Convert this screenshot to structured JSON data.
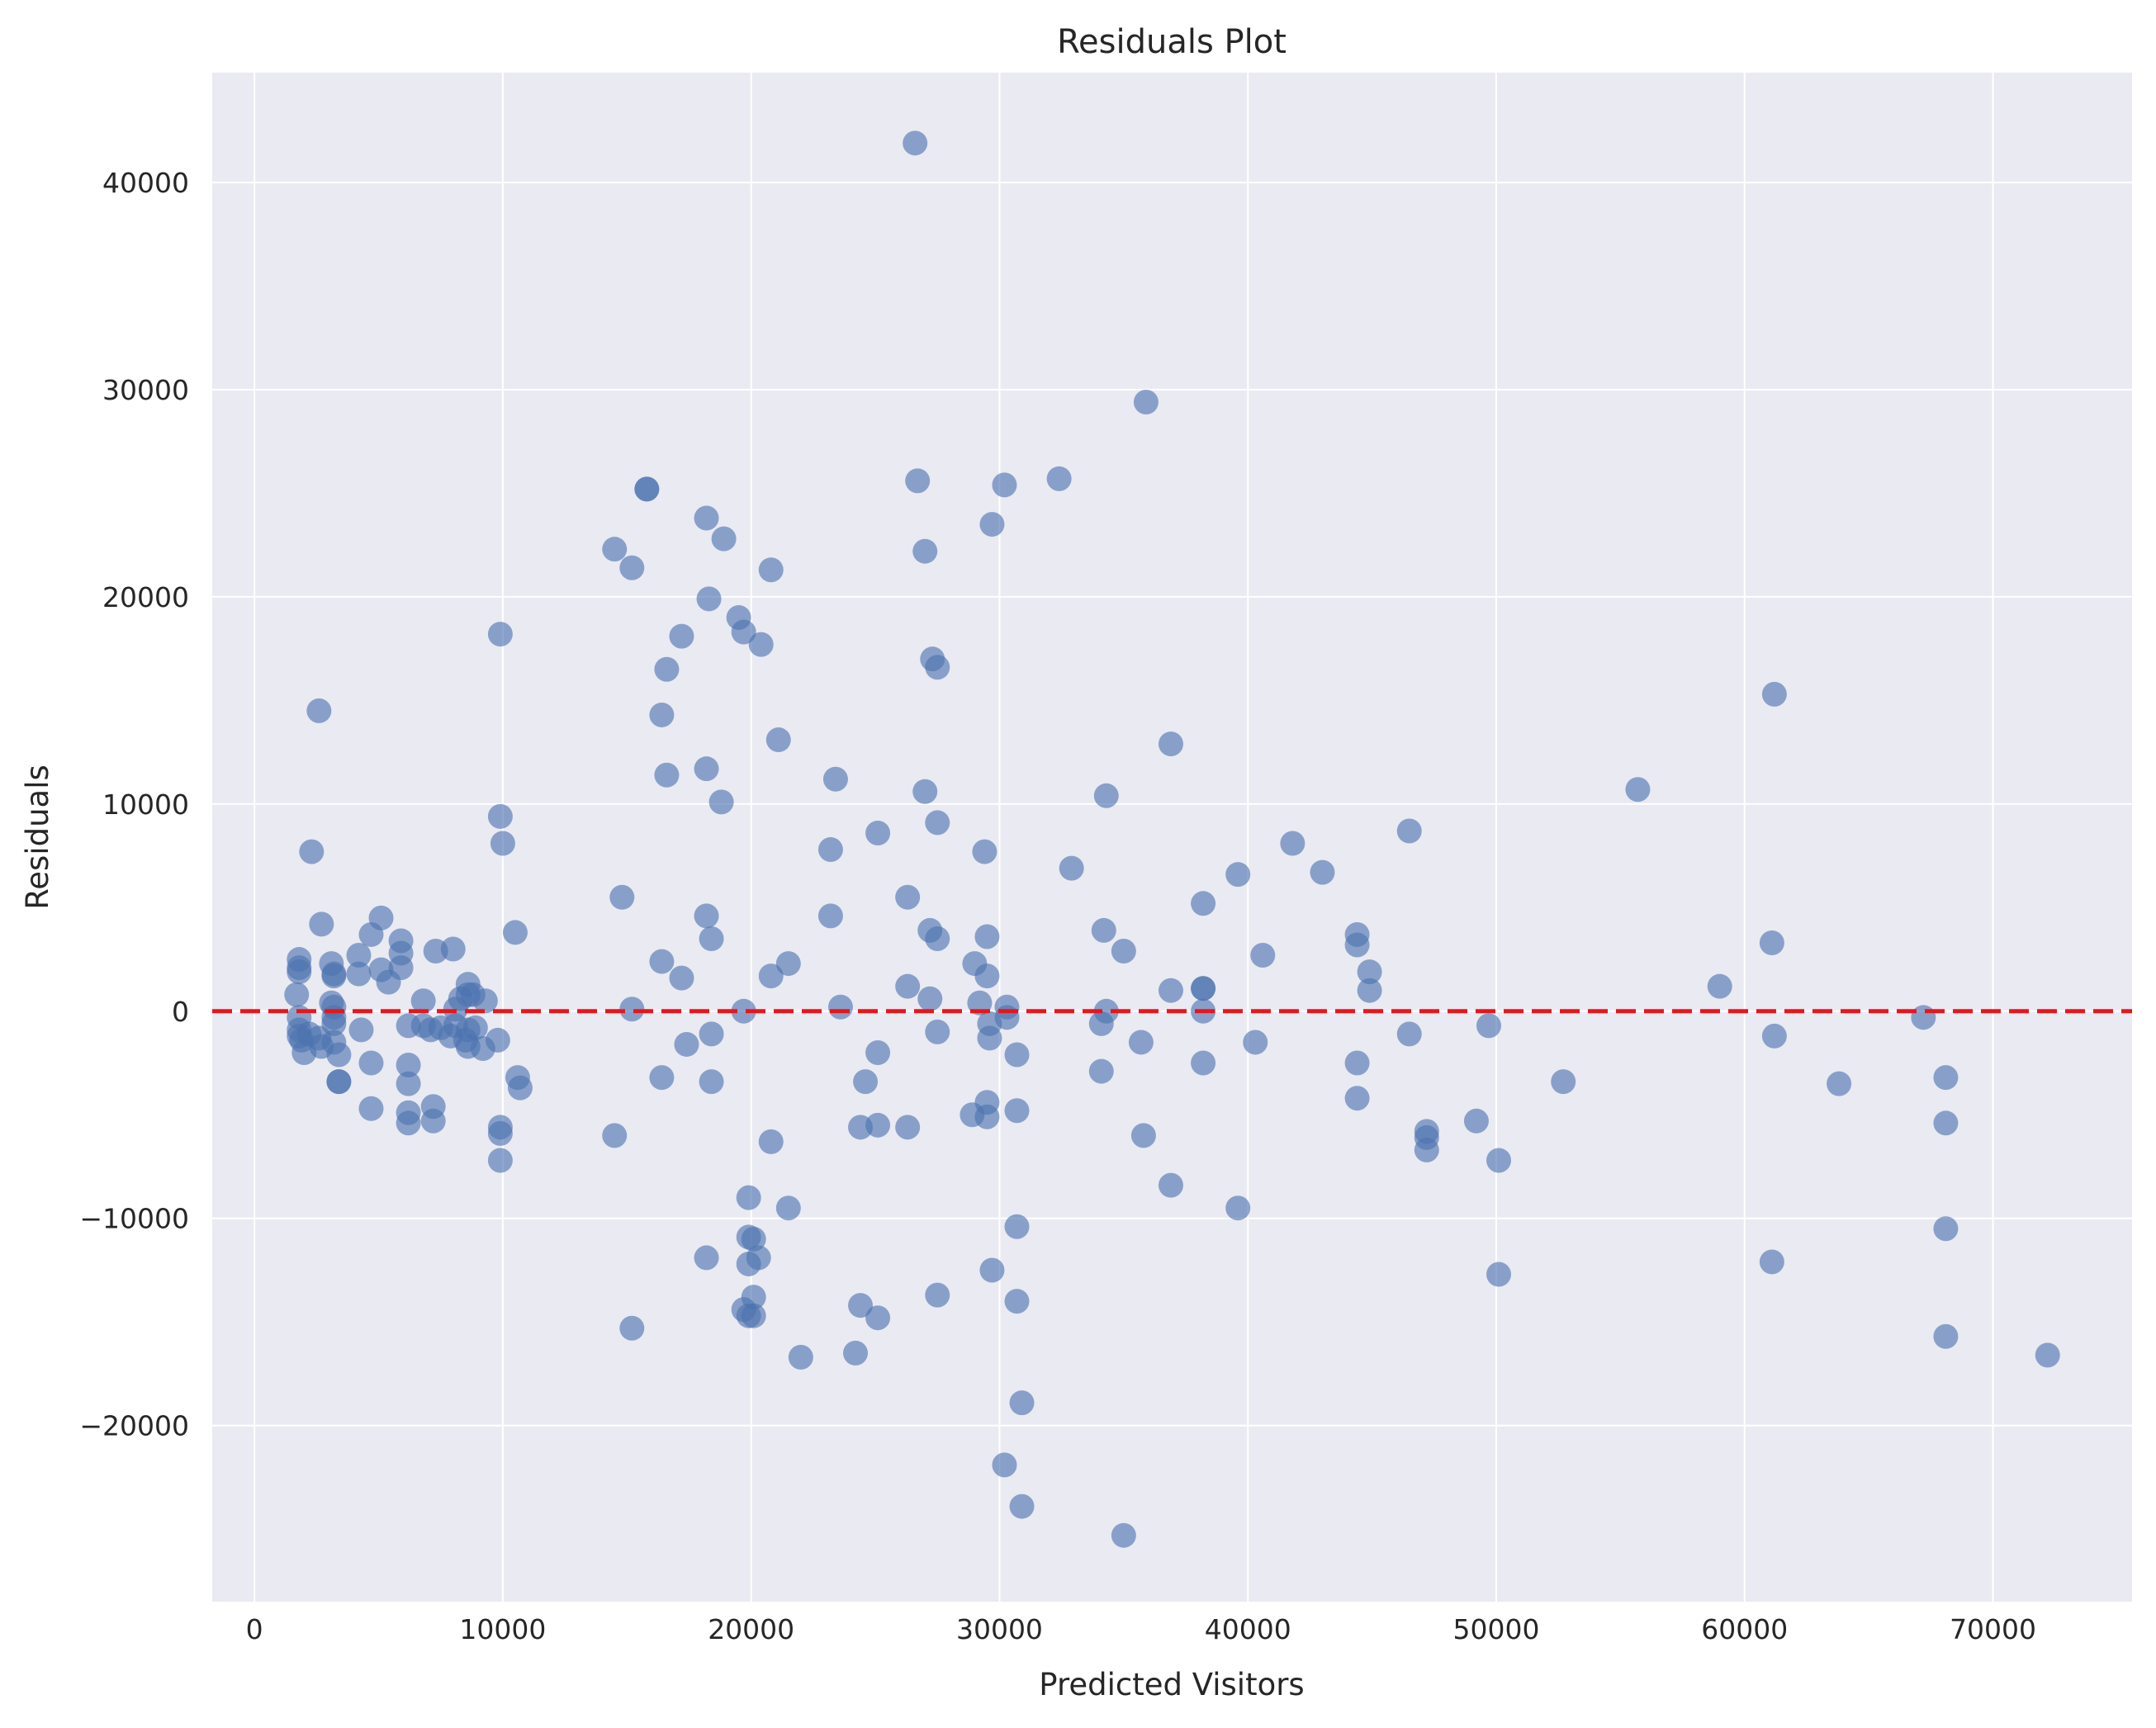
{
  "chart_data": {
    "type": "scatter",
    "title": "Residuals Plot",
    "xlabel": "Predicted Visitors",
    "ylabel": "Residuals",
    "xlim": [
      -1700,
      75600
    ],
    "ylim": [
      -28500,
      45300
    ],
    "xticks": [
      0,
      10000,
      20000,
      30000,
      40000,
      50000,
      60000,
      70000
    ],
    "yticks": [
      -20000,
      -10000,
      0,
      10000,
      20000,
      30000,
      40000
    ],
    "xtick_labels": [
      "0",
      "10000",
      "20000",
      "30000",
      "40000",
      "50000",
      "60000",
      "70000"
    ],
    "ytick_labels": [
      "−20000",
      "−10000",
      "0",
      "10000",
      "20000",
      "30000",
      "40000"
    ],
    "grid": true,
    "reference_line": {
      "y": 0,
      "style": "dashed",
      "color": "#e8161b"
    },
    "colors": {
      "background": "#eaeaf2",
      "grid": "#ffffff",
      "points": "#4c72b0",
      "text": "#262626"
    },
    "points": [
      [
        26600,
        41900
      ],
      [
        35900,
        29400
      ],
      [
        15800,
        25200
      ],
      [
        15800,
        25200
      ],
      [
        26700,
        25600
      ],
      [
        30200,
        25400
      ],
      [
        32400,
        25700
      ],
      [
        18200,
        23800
      ],
      [
        18900,
        22800
      ],
      [
        29700,
        23500
      ],
      [
        14500,
        22300
      ],
      [
        15200,
        21400
      ],
      [
        27000,
        22200
      ],
      [
        20800,
        21300
      ],
      [
        18300,
        19900
      ],
      [
        19500,
        19000
      ],
      [
        19700,
        18300
      ],
      [
        20400,
        17700
      ],
      [
        17200,
        18100
      ],
      [
        9900,
        18200
      ],
      [
        16600,
        16500
      ],
      [
        27300,
        17000
      ],
      [
        27500,
        16600
      ],
      [
        2600,
        14500
      ],
      [
        16400,
        14300
      ],
      [
        21100,
        13100
      ],
      [
        36900,
        12900
      ],
      [
        16600,
        11400
      ],
      [
        18200,
        11700
      ],
      [
        23400,
        11200
      ],
      [
        27000,
        10600
      ],
      [
        34300,
        10400
      ],
      [
        55700,
        10700
      ],
      [
        61200,
        15300
      ],
      [
        18800,
        10100
      ],
      [
        9900,
        9400
      ],
      [
        27500,
        9100
      ],
      [
        10000,
        8100
      ],
      [
        25100,
        8600
      ],
      [
        2300,
        7700
      ],
      [
        23200,
        7800
      ],
      [
        29400,
        7700
      ],
      [
        41800,
        8100
      ],
      [
        46500,
        8700
      ],
      [
        32900,
        6900
      ],
      [
        39600,
        6600
      ],
      [
        43000,
        6700
      ],
      [
        14800,
        5500
      ],
      [
        26300,
        5500
      ],
      [
        38200,
        5200
      ],
      [
        2700,
        4200
      ],
      [
        5100,
        4500
      ],
      [
        23200,
        4600
      ],
      [
        18200,
        4600
      ],
      [
        27200,
        3900
      ],
      [
        34200,
        3900
      ],
      [
        4700,
        3700
      ],
      [
        5900,
        3400
      ],
      [
        7300,
        2900
      ],
      [
        8000,
        3000
      ],
      [
        10500,
        3800
      ],
      [
        18400,
        3500
      ],
      [
        27500,
        3500
      ],
      [
        29500,
        3600
      ],
      [
        44400,
        3700
      ],
      [
        44400,
        3200
      ],
      [
        61100,
        3300
      ],
      [
        1800,
        2500
      ],
      [
        3100,
        2300
      ],
      [
        4200,
        2700
      ],
      [
        5900,
        2800
      ],
      [
        16400,
        2400
      ],
      [
        21500,
        2300
      ],
      [
        35000,
        2900
      ],
      [
        40600,
        2700
      ],
      [
        1800,
        2100
      ],
      [
        1800,
        1900
      ],
      [
        3200,
        1800
      ],
      [
        3200,
        1700
      ],
      [
        4200,
        1800
      ],
      [
        5100,
        2000
      ],
      [
        5900,
        2100
      ],
      [
        5400,
        1400
      ],
      [
        8600,
        1300
      ],
      [
        17200,
        1600
      ],
      [
        20800,
        1700
      ],
      [
        29000,
        2300
      ],
      [
        29500,
        1700
      ],
      [
        44900,
        1900
      ],
      [
        26300,
        1200
      ],
      [
        38200,
        1100
      ],
      [
        38200,
        1100
      ],
      [
        59000,
        1200
      ],
      [
        1700,
        800
      ],
      [
        36900,
        1000
      ],
      [
        44900,
        1000
      ],
      [
        6800,
        500
      ],
      [
        8300,
        600
      ],
      [
        8600,
        800
      ],
      [
        8800,
        800
      ],
      [
        9300,
        500
      ],
      [
        3100,
        400
      ],
      [
        3200,
        200
      ],
      [
        15200,
        100
      ],
      [
        23600,
        200
      ],
      [
        27200,
        600
      ],
      [
        29200,
        400
      ],
      [
        30300,
        200
      ],
      [
        34300,
        0
      ],
      [
        38200,
        0
      ],
      [
        8100,
        100
      ],
      [
        1800,
        -300
      ],
      [
        3200,
        -300
      ],
      [
        19700,
        0
      ],
      [
        3200,
        -600
      ],
      [
        6200,
        -700
      ],
      [
        6800,
        -700
      ],
      [
        7500,
        -800
      ],
      [
        8100,
        -700
      ],
      [
        8600,
        -900
      ],
      [
        8900,
        -800
      ],
      [
        29600,
        -600
      ],
      [
        30300,
        -300
      ],
      [
        34100,
        -600
      ],
      [
        46500,
        -1100
      ],
      [
        49700,
        -700
      ],
      [
        67200,
        -300
      ],
      [
        1800,
        -900
      ],
      [
        1800,
        -1200
      ],
      [
        2200,
        -1100
      ],
      [
        2600,
        -1300
      ],
      [
        4300,
        -900
      ],
      [
        7100,
        -900
      ],
      [
        7900,
        -1200
      ],
      [
        8500,
        -1400
      ],
      [
        9800,
        -1400
      ],
      [
        18400,
        -1100
      ],
      [
        27500,
        -1000
      ],
      [
        29600,
        -1300
      ],
      [
        35700,
        -1500
      ],
      [
        40300,
        -1500
      ],
      [
        61200,
        -1200
      ],
      [
        1900,
        -1400
      ],
      [
        2700,
        -1700
      ],
      [
        3200,
        -1500
      ],
      [
        3400,
        -2100
      ],
      [
        2000,
        -2000
      ],
      [
        8600,
        -1700
      ],
      [
        9200,
        -1800
      ],
      [
        17400,
        -1600
      ],
      [
        25100,
        -2000
      ],
      [
        30700,
        -2100
      ],
      [
        4700,
        -2500
      ],
      [
        6200,
        -2600
      ],
      [
        38200,
        -2500
      ],
      [
        44400,
        -2500
      ],
      [
        34100,
        -2900
      ],
      [
        3400,
        -3400
      ],
      [
        3400,
        -3400
      ],
      [
        6200,
        -3500
      ],
      [
        10600,
        -3200
      ],
      [
        10700,
        -3700
      ],
      [
        16400,
        -3200
      ],
      [
        18400,
        -3400
      ],
      [
        24600,
        -3400
      ],
      [
        52700,
        -3400
      ],
      [
        63800,
        -3500
      ],
      [
        68100,
        -3200
      ],
      [
        4700,
        -4700
      ],
      [
        7200,
        -4600
      ],
      [
        44400,
        -4200
      ],
      [
        29500,
        -4400
      ],
      [
        6200,
        -4900
      ],
      [
        6200,
        -5400
      ],
      [
        7200,
        -5300
      ],
      [
        9900,
        -5600
      ],
      [
        9900,
        -5900
      ],
      [
        14500,
        -6000
      ],
      [
        20800,
        -6300
      ],
      [
        24400,
        -5600
      ],
      [
        25100,
        -5500
      ],
      [
        26300,
        -5600
      ],
      [
        28900,
        -5000
      ],
      [
        29500,
        -5100
      ],
      [
        30700,
        -4800
      ],
      [
        35800,
        -6000
      ],
      [
        47200,
        -5800
      ],
      [
        47200,
        -6100
      ],
      [
        49200,
        -5300
      ],
      [
        68100,
        -5400
      ],
      [
        9900,
        -7200
      ],
      [
        47200,
        -6700
      ],
      [
        50100,
        -7200
      ],
      [
        36900,
        -8400
      ],
      [
        19900,
        -9000
      ],
      [
        21500,
        -9500
      ],
      [
        39600,
        -9500
      ],
      [
        30700,
        -10400
      ],
      [
        68100,
        -10500
      ],
      [
        19900,
        -10900
      ],
      [
        20100,
        -11000
      ],
      [
        18200,
        -11900
      ],
      [
        20300,
        -11900
      ],
      [
        19900,
        -12200
      ],
      [
        29700,
        -12500
      ],
      [
        50100,
        -12700
      ],
      [
        61100,
        -12100
      ],
      [
        27500,
        -13700
      ],
      [
        20100,
        -13800
      ],
      [
        30700,
        -14000
      ],
      [
        24400,
        -14200
      ],
      [
        19700,
        -14400
      ],
      [
        19900,
        -14700
      ],
      [
        20100,
        -14700
      ],
      [
        25100,
        -14800
      ],
      [
        15200,
        -15300
      ],
      [
        68100,
        -15700
      ],
      [
        24200,
        -16500
      ],
      [
        22000,
        -16700
      ],
      [
        72200,
        -16600
      ],
      [
        30900,
        -18900
      ],
      [
        30200,
        -21900
      ],
      [
        30900,
        -23900
      ],
      [
        35000,
        -25300
      ]
    ]
  }
}
